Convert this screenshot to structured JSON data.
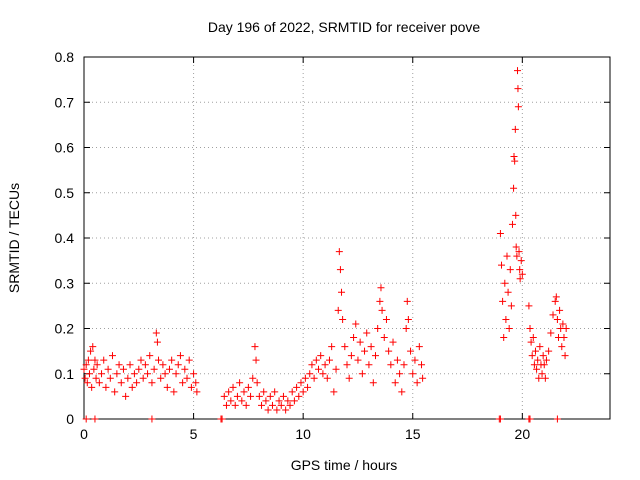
{
  "chart_data": {
    "type": "scatter",
    "title": "Day 196 of 2022, SRMTID for receiver pove",
    "xlabel": "GPS time / hours",
    "ylabel": "SRMTID / TECUs",
    "xlim": [
      0,
      24
    ],
    "ylim": [
      0,
      0.8
    ],
    "xticks": [
      0,
      5,
      10,
      15,
      20
    ],
    "yticks": [
      0,
      0.1,
      0.2,
      0.3,
      0.4,
      0.5,
      0.6,
      0.7,
      0.8
    ],
    "grid": true,
    "marker": "plus",
    "series_color": "#ff0000",
    "series": [
      {
        "name": "SRMTID",
        "points": [
          [
            0.0,
            0.11
          ],
          [
            0.05,
            0.09
          ],
          [
            0.1,
            0.12
          ],
          [
            0.15,
            0.08
          ],
          [
            0.2,
            0.13
          ],
          [
            0.25,
            0.1
          ],
          [
            0.3,
            0.15
          ],
          [
            0.35,
            0.07
          ],
          [
            0.4,
            0.16
          ],
          [
            0.45,
            0.11
          ],
          [
            0.5,
            0.13
          ],
          [
            0.55,
            0.09
          ],
          [
            0.6,
            0.12
          ],
          [
            0.7,
            0.08
          ],
          [
            0.8,
            0.1
          ],
          [
            0.9,
            0.13
          ],
          [
            1.0,
            0.07
          ],
          [
            1.1,
            0.11
          ],
          [
            1.2,
            0.09
          ],
          [
            1.3,
            0.14
          ],
          [
            1.4,
            0.06
          ],
          [
            1.5,
            0.1
          ],
          [
            1.6,
            0.12
          ],
          [
            1.7,
            0.08
          ],
          [
            1.8,
            0.11
          ],
          [
            1.9,
            0.05
          ],
          [
            2.0,
            0.09
          ],
          [
            2.1,
            0.12
          ],
          [
            2.2,
            0.07
          ],
          [
            2.3,
            0.1
          ],
          [
            2.4,
            0.08
          ],
          [
            2.5,
            0.11
          ],
          [
            2.6,
            0.13
          ],
          [
            2.7,
            0.09
          ],
          [
            2.8,
            0.12
          ],
          [
            2.9,
            0.1
          ],
          [
            3.0,
            0.14
          ],
          [
            3.1,
            0.08
          ],
          [
            3.2,
            0.11
          ],
          [
            3.3,
            0.19
          ],
          [
            3.35,
            0.17
          ],
          [
            3.4,
            0.13
          ],
          [
            3.5,
            0.09
          ],
          [
            3.6,
            0.12
          ],
          [
            3.7,
            0.1
          ],
          [
            3.8,
            0.07
          ],
          [
            3.9,
            0.11
          ],
          [
            4.0,
            0.13
          ],
          [
            4.1,
            0.06
          ],
          [
            4.2,
            0.1
          ],
          [
            4.3,
            0.12
          ],
          [
            4.4,
            0.14
          ],
          [
            4.5,
            0.08
          ],
          [
            4.6,
            0.11
          ],
          [
            4.7,
            0.09
          ],
          [
            4.8,
            0.13
          ],
          [
            4.9,
            0.07
          ],
          [
            5.0,
            0.1
          ],
          [
            5.1,
            0.08
          ],
          [
            5.15,
            0.06
          ],
          [
            6.4,
            0.05
          ],
          [
            6.5,
            0.03
          ],
          [
            6.6,
            0.06
          ],
          [
            6.7,
            0.04
          ],
          [
            6.8,
            0.07
          ],
          [
            6.9,
            0.03
          ],
          [
            7.0,
            0.05
          ],
          [
            7.1,
            0.08
          ],
          [
            7.2,
            0.04
          ],
          [
            7.3,
            0.06
          ],
          [
            7.4,
            0.03
          ],
          [
            7.5,
            0.07
          ],
          [
            7.6,
            0.05
          ],
          [
            7.7,
            0.09
          ],
          [
            7.8,
            0.16
          ],
          [
            7.85,
            0.13
          ],
          [
            7.9,
            0.08
          ],
          [
            8.0,
            0.05
          ],
          [
            8.1,
            0.03
          ],
          [
            8.2,
            0.06
          ],
          [
            8.3,
            0.04
          ],
          [
            8.4,
            0.02
          ],
          [
            8.5,
            0.05
          ],
          [
            8.6,
            0.03
          ],
          [
            8.7,
            0.06
          ],
          [
            8.8,
            0.02
          ],
          [
            8.9,
            0.04
          ],
          [
            9.0,
            0.03
          ],
          [
            9.1,
            0.05
          ],
          [
            9.2,
            0.02
          ],
          [
            9.3,
            0.04
          ],
          [
            9.4,
            0.03
          ],
          [
            9.5,
            0.06
          ],
          [
            9.6,
            0.04
          ],
          [
            9.7,
            0.07
          ],
          [
            9.8,
            0.05
          ],
          [
            9.9,
            0.08
          ],
          [
            10.0,
            0.06
          ],
          [
            10.1,
            0.09
          ],
          [
            10.2,
            0.07
          ],
          [
            10.3,
            0.1
          ],
          [
            10.4,
            0.12
          ],
          [
            10.5,
            0.09
          ],
          [
            10.6,
            0.13
          ],
          [
            10.7,
            0.11
          ],
          [
            10.8,
            0.14
          ],
          [
            10.9,
            0.1
          ],
          [
            11.0,
            0.12
          ],
          [
            11.1,
            0.09
          ],
          [
            11.2,
            0.13
          ],
          [
            11.3,
            0.16
          ],
          [
            11.4,
            0.06
          ],
          [
            11.5,
            0.11
          ],
          [
            11.6,
            0.24
          ],
          [
            11.65,
            0.37
          ],
          [
            11.7,
            0.33
          ],
          [
            11.75,
            0.28
          ],
          [
            11.8,
            0.22
          ],
          [
            11.9,
            0.16
          ],
          [
            12.0,
            0.12
          ],
          [
            12.1,
            0.09
          ],
          [
            12.2,
            0.14
          ],
          [
            12.3,
            0.18
          ],
          [
            12.4,
            0.21
          ],
          [
            12.5,
            0.13
          ],
          [
            12.6,
            0.17
          ],
          [
            12.7,
            0.1
          ],
          [
            12.8,
            0.15
          ],
          [
            12.9,
            0.19
          ],
          [
            13.0,
            0.12
          ],
          [
            13.1,
            0.16
          ],
          [
            13.2,
            0.08
          ],
          [
            13.3,
            0.14
          ],
          [
            13.4,
            0.2
          ],
          [
            13.5,
            0.26
          ],
          [
            13.55,
            0.29
          ],
          [
            13.6,
            0.24
          ],
          [
            13.7,
            0.18
          ],
          [
            13.8,
            0.22
          ],
          [
            13.9,
            0.15
          ],
          [
            14.0,
            0.12
          ],
          [
            14.1,
            0.17
          ],
          [
            14.2,
            0.08
          ],
          [
            14.3,
            0.13
          ],
          [
            14.4,
            0.1
          ],
          [
            14.5,
            0.06
          ],
          [
            14.6,
            0.12
          ],
          [
            14.7,
            0.2
          ],
          [
            14.75,
            0.26
          ],
          [
            14.8,
            0.22
          ],
          [
            14.9,
            0.15
          ],
          [
            15.0,
            0.1
          ],
          [
            15.1,
            0.13
          ],
          [
            15.2,
            0.08
          ],
          [
            15.3,
            0.16
          ],
          [
            15.4,
            0.12
          ],
          [
            15.45,
            0.09
          ],
          [
            19.0,
            0.41
          ],
          [
            19.05,
            0.34
          ],
          [
            19.1,
            0.26
          ],
          [
            19.15,
            0.18
          ],
          [
            19.2,
            0.3
          ],
          [
            19.25,
            0.22
          ],
          [
            19.3,
            0.36
          ],
          [
            19.35,
            0.28
          ],
          [
            19.4,
            0.2
          ],
          [
            19.45,
            0.33
          ],
          [
            19.5,
            0.25
          ],
          [
            19.55,
            0.43
          ],
          [
            19.6,
            0.51
          ],
          [
            19.62,
            0.58
          ],
          [
            19.65,
            0.57
          ],
          [
            19.68,
            0.64
          ],
          [
            19.7,
            0.45
          ],
          [
            19.72,
            0.38
          ],
          [
            19.75,
            0.36
          ],
          [
            19.78,
            0.77
          ],
          [
            19.8,
            0.73
          ],
          [
            19.82,
            0.69
          ],
          [
            19.85,
            0.37
          ],
          [
            19.88,
            0.33
          ],
          [
            19.9,
            0.31
          ],
          [
            19.95,
            0.35
          ],
          [
            20.0,
            0.32
          ],
          [
            20.3,
            0.25
          ],
          [
            20.35,
            0.2
          ],
          [
            20.4,
            0.17
          ],
          [
            20.45,
            0.14
          ],
          [
            20.5,
            0.18
          ],
          [
            20.55,
            0.12
          ],
          [
            20.6,
            0.15
          ],
          [
            20.65,
            0.11
          ],
          [
            20.7,
            0.13
          ],
          [
            20.75,
            0.09
          ],
          [
            20.8,
            0.16
          ],
          [
            20.85,
            0.12
          ],
          [
            20.9,
            0.1
          ],
          [
            20.95,
            0.14
          ],
          [
            21.0,
            0.12
          ],
          [
            21.05,
            0.09
          ],
          [
            21.1,
            0.13
          ],
          [
            21.2,
            0.15
          ],
          [
            21.3,
            0.19
          ],
          [
            21.4,
            0.23
          ],
          [
            21.5,
            0.26
          ],
          [
            21.55,
            0.27
          ],
          [
            21.6,
            0.22
          ],
          [
            21.65,
            0.18
          ],
          [
            21.7,
            0.24
          ],
          [
            21.75,
            0.2
          ],
          [
            21.8,
            0.16
          ],
          [
            21.85,
            0.21
          ],
          [
            21.9,
            0.18
          ],
          [
            21.95,
            0.14
          ],
          [
            22.0,
            0.2
          ],
          [
            0.1,
            0.0
          ],
          [
            0.5,
            0.0
          ],
          [
            3.1,
            0.0
          ],
          [
            6.25,
            0.0
          ],
          [
            6.3,
            0.0
          ],
          [
            18.95,
            0.0
          ],
          [
            19.0,
            0.0
          ],
          [
            20.3,
            0.0
          ],
          [
            20.35,
            0.0
          ],
          [
            21.6,
            0.0
          ]
        ]
      }
    ]
  }
}
